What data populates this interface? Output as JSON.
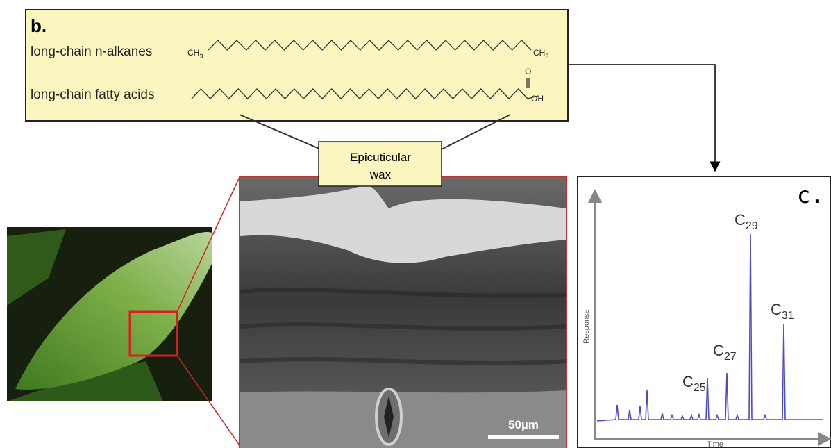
{
  "panel_b": {
    "label": "b.",
    "rows": [
      {
        "name": "long-chain n-alkanes",
        "left_group": {
          "base": "CH",
          "sub": "3"
        },
        "right_group": {
          "base": "CH",
          "sub": "3"
        }
      },
      {
        "name": "long-chain fatty acids",
        "carbonyl": "O",
        "hydroxyl": "OH"
      }
    ]
  },
  "callout": {
    "line1": "Epicuticular",
    "line2": "wax"
  },
  "micrograph": {
    "scale_bar": "50µm"
  },
  "panel_c": {
    "label": "c.",
    "y_axis": "Response",
    "x_axis": "Time",
    "peaks": [
      {
        "base": "C",
        "sub": "25"
      },
      {
        "base": "C",
        "sub": "27"
      },
      {
        "base": "C",
        "sub": "29"
      },
      {
        "base": "C",
        "sub": "31"
      }
    ]
  }
}
